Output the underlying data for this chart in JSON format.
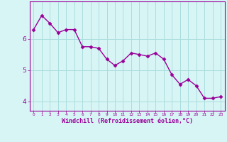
{
  "x": [
    0,
    1,
    2,
    3,
    4,
    5,
    6,
    7,
    8,
    9,
    10,
    11,
    12,
    13,
    14,
    15,
    16,
    17,
    18,
    19,
    20,
    21,
    22,
    23
  ],
  "y": [
    6.3,
    6.75,
    6.5,
    6.2,
    6.3,
    6.3,
    5.75,
    5.75,
    5.7,
    5.35,
    5.15,
    5.3,
    5.55,
    5.5,
    5.45,
    5.55,
    5.35,
    4.85,
    4.55,
    4.7,
    4.5,
    4.1,
    4.1,
    4.15
  ],
  "line_color": "#990099",
  "marker": "D",
  "markersize": 2.5,
  "linewidth": 1.0,
  "bg_color": "#d8f5f5",
  "grid_color": "#aadddd",
  "xlabel": "Windchill (Refroidissement éolien,°C)",
  "xlabel_color": "#990099",
  "tick_color": "#990099",
  "spine_color": "#990099",
  "yticks": [
    4,
    5,
    6
  ],
  "ylim": [
    3.7,
    7.2
  ],
  "xlim": [
    -0.5,
    23.5
  ]
}
